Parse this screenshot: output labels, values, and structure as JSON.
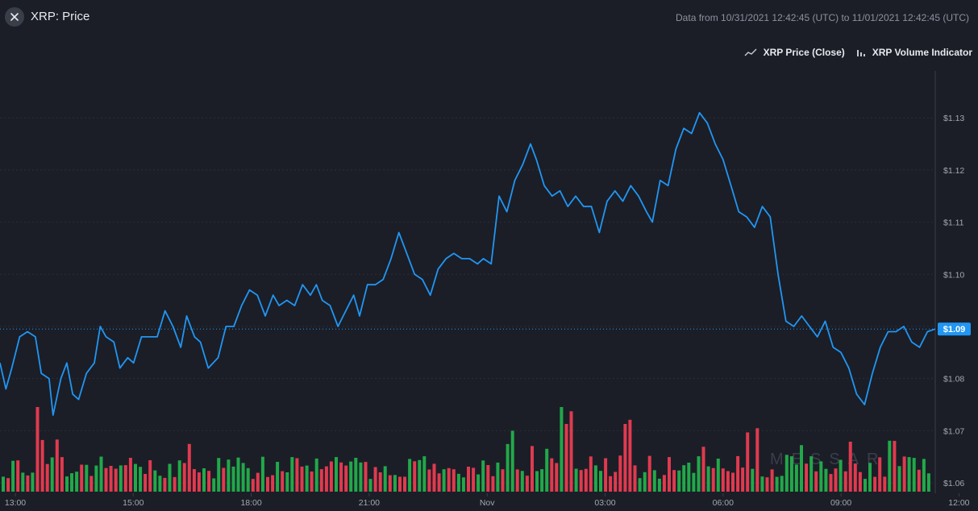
{
  "header": {
    "title": "XRP: Price",
    "date_range": "Data from 10/31/2021 12:42:45 (UTC) to 11/01/2021 12:42:45 (UTC)"
  },
  "legend": {
    "items": [
      {
        "label": "XRP Price (Close)",
        "icon": "line-chart-icon"
      },
      {
        "label": "XRP Volume Indicator",
        "icon": "bar-chart-icon"
      }
    ]
  },
  "colors": {
    "background": "#1b1e27",
    "price_line": "#2196f3",
    "volume_up": "#22a84a",
    "volume_down": "#e03a4f",
    "grid": "#2a2e39",
    "current_price_badge": "#2196f3"
  },
  "watermark": "MESSARI",
  "chart_data": {
    "type": "line",
    "title": "XRP: Price",
    "y_axis": {
      "position": "right",
      "ticks": [
        "$1.13",
        "$1.12",
        "$1.11",
        "$1.10",
        "$1.09",
        "$1.08",
        "$1.07",
        "$1.06"
      ],
      "range": [
        1.058,
        1.139
      ]
    },
    "x_axis": {
      "ticks": [
        "13:00",
        "15:00",
        "18:00",
        "21:00",
        "Nov",
        "03:00",
        "06:00",
        "09:00",
        "12:00"
      ],
      "range_hours": [
        0,
        23.8
      ]
    },
    "grid": true,
    "current_price_label": "$1.09",
    "current_price": 1.0895,
    "series": [
      {
        "name": "XRP Price (Close)",
        "type": "line",
        "points": [
          [
            0.0,
            1.083
          ],
          [
            0.15,
            1.078
          ],
          [
            0.3,
            1.082
          ],
          [
            0.5,
            1.088
          ],
          [
            0.7,
            1.089
          ],
          [
            0.9,
            1.088
          ],
          [
            1.05,
            1.081
          ],
          [
            1.25,
            1.08
          ],
          [
            1.35,
            1.073
          ],
          [
            1.55,
            1.08
          ],
          [
            1.7,
            1.083
          ],
          [
            1.85,
            1.077
          ],
          [
            2.0,
            1.076
          ],
          [
            2.2,
            1.081
          ],
          [
            2.4,
            1.083
          ],
          [
            2.55,
            1.09
          ],
          [
            2.7,
            1.088
          ],
          [
            2.9,
            1.087
          ],
          [
            3.05,
            1.082
          ],
          [
            3.25,
            1.084
          ],
          [
            3.4,
            1.083
          ],
          [
            3.6,
            1.088
          ],
          [
            3.8,
            1.088
          ],
          [
            4.0,
            1.088
          ],
          [
            4.2,
            1.093
          ],
          [
            4.4,
            1.09
          ],
          [
            4.6,
            1.086
          ],
          [
            4.75,
            1.092
          ],
          [
            4.95,
            1.088
          ],
          [
            5.1,
            1.087
          ],
          [
            5.3,
            1.082
          ],
          [
            5.55,
            1.084
          ],
          [
            5.75,
            1.09
          ],
          [
            5.95,
            1.09
          ],
          [
            6.15,
            1.094
          ],
          [
            6.35,
            1.097
          ],
          [
            6.55,
            1.096
          ],
          [
            6.75,
            1.092
          ],
          [
            6.95,
            1.096
          ],
          [
            7.1,
            1.094
          ],
          [
            7.3,
            1.095
          ],
          [
            7.5,
            1.094
          ],
          [
            7.7,
            1.098
          ],
          [
            7.9,
            1.096
          ],
          [
            8.05,
            1.098
          ],
          [
            8.2,
            1.095
          ],
          [
            8.4,
            1.094
          ],
          [
            8.6,
            1.09
          ],
          [
            8.8,
            1.093
          ],
          [
            9.0,
            1.096
          ],
          [
            9.15,
            1.092
          ],
          [
            9.35,
            1.098
          ],
          [
            9.55,
            1.098
          ],
          [
            9.75,
            1.099
          ],
          [
            9.95,
            1.103
          ],
          [
            10.15,
            1.108
          ],
          [
            10.35,
            1.104
          ],
          [
            10.55,
            1.1
          ],
          [
            10.75,
            1.099
          ],
          [
            10.95,
            1.096
          ],
          [
            11.15,
            1.101
          ],
          [
            11.35,
            1.103
          ],
          [
            11.55,
            1.104
          ],
          [
            11.75,
            1.103
          ],
          [
            11.95,
            1.103
          ],
          [
            12.15,
            1.102
          ],
          [
            12.3,
            1.103
          ],
          [
            12.5,
            1.102
          ],
          [
            12.7,
            1.115
          ],
          [
            12.9,
            1.112
          ],
          [
            13.1,
            1.118
          ],
          [
            13.3,
            1.121
          ],
          [
            13.5,
            1.125
          ],
          [
            13.65,
            1.122
          ],
          [
            13.85,
            1.117
          ],
          [
            14.05,
            1.115
          ],
          [
            14.25,
            1.116
          ],
          [
            14.45,
            1.113
          ],
          [
            14.65,
            1.115
          ],
          [
            14.85,
            1.113
          ],
          [
            15.05,
            1.113
          ],
          [
            15.25,
            1.108
          ],
          [
            15.45,
            1.114
          ],
          [
            15.65,
            1.116
          ],
          [
            15.85,
            1.114
          ],
          [
            16.05,
            1.117
          ],
          [
            16.25,
            1.115
          ],
          [
            16.45,
            1.112
          ],
          [
            16.6,
            1.11
          ],
          [
            16.8,
            1.118
          ],
          [
            17.0,
            1.117
          ],
          [
            17.2,
            1.124
          ],
          [
            17.4,
            1.128
          ],
          [
            17.6,
            1.127
          ],
          [
            17.8,
            1.131
          ],
          [
            18.0,
            1.129
          ],
          [
            18.2,
            1.125
          ],
          [
            18.4,
            1.122
          ],
          [
            18.6,
            1.117
          ],
          [
            18.8,
            1.112
          ],
          [
            19.0,
            1.111
          ],
          [
            19.2,
            1.109
          ],
          [
            19.4,
            1.113
          ],
          [
            19.6,
            1.111
          ],
          [
            19.8,
            1.1
          ],
          [
            20.0,
            1.091
          ],
          [
            20.2,
            1.09
          ],
          [
            20.4,
            1.092
          ],
          [
            20.6,
            1.09
          ],
          [
            20.8,
            1.088
          ],
          [
            21.0,
            1.091
          ],
          [
            21.2,
            1.086
          ],
          [
            21.4,
            1.085
          ],
          [
            21.6,
            1.082
          ],
          [
            21.8,
            1.077
          ],
          [
            22.0,
            1.075
          ],
          [
            22.2,
            1.081
          ],
          [
            22.4,
            1.086
          ],
          [
            22.6,
            1.089
          ],
          [
            22.8,
            1.089
          ],
          [
            23.0,
            1.09
          ],
          [
            23.2,
            1.087
          ],
          [
            23.4,
            1.086
          ],
          [
            23.6,
            1.089
          ],
          [
            23.8,
            1.0895
          ]
        ]
      },
      {
        "name": "XRP Volume Indicator",
        "type": "bar",
        "bar_count": 190,
        "scale": "relative (0–1)",
        "values_note": "generated"
      }
    ]
  }
}
